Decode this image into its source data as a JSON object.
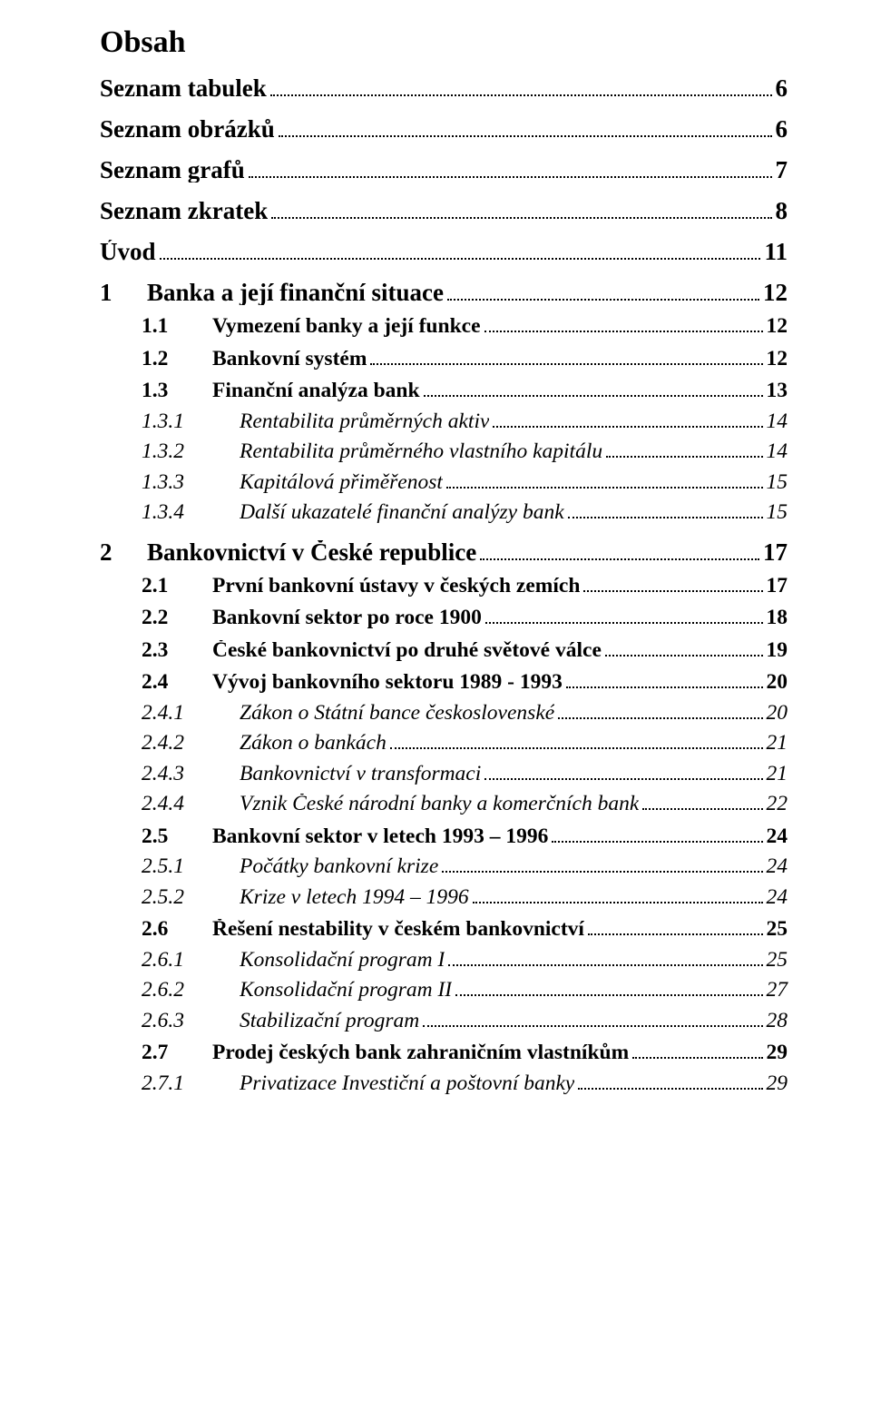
{
  "colors": {
    "text": "#000000",
    "background": "#ffffff",
    "dots": "#000000"
  },
  "typography": {
    "family": "Times New Roman",
    "heading_pt": 26,
    "lvl0_pt": 20,
    "lvl1_pt": 18,
    "lvl2_pt": 18
  },
  "heading": "Obsah",
  "entries": [
    {
      "level": 0,
      "num": "",
      "label": "Seznam tabulek",
      "page": "6"
    },
    {
      "level": 0,
      "num": "",
      "label": "Seznam obrázků",
      "page": "6"
    },
    {
      "level": 0,
      "num": "",
      "label": "Seznam grafů",
      "page": "7"
    },
    {
      "level": 0,
      "num": "",
      "label": "Seznam zkratek",
      "page": "8"
    },
    {
      "level": 0,
      "num": "",
      "label": "Úvod",
      "page": "11"
    },
    {
      "level": 0,
      "num": "1",
      "label": "Banka a její finanční situace",
      "page": "12"
    },
    {
      "level": 1,
      "num": "1.1",
      "label": "Vymezení banky a její funkce",
      "page": "12"
    },
    {
      "level": 1,
      "num": "1.2",
      "label": "Bankovní systém",
      "page": "12"
    },
    {
      "level": 1,
      "num": "1.3",
      "label": "Finanční analýza bank",
      "page": "13"
    },
    {
      "level": 2,
      "num": "1.3.1",
      "label": "Rentabilita průměrných aktiv",
      "page": "14"
    },
    {
      "level": 2,
      "num": "1.3.2",
      "label": "Rentabilita průměrného vlastního kapitálu",
      "page": "14"
    },
    {
      "level": 2,
      "num": "1.3.3",
      "label": "Kapitálová přiměřenost",
      "page": "15"
    },
    {
      "level": 2,
      "num": "1.3.4",
      "label": "Další ukazatelé finanční analýzy bank",
      "page": "15"
    },
    {
      "level": 0,
      "num": "2",
      "label": "Bankovnictví v České republice",
      "page": "17"
    },
    {
      "level": 1,
      "num": "2.1",
      "label": "První bankovní ústavy v českých zemích",
      "page": "17"
    },
    {
      "level": 1,
      "num": "2.2",
      "label": "Bankovní sektor po roce 1900",
      "page": "18"
    },
    {
      "level": 1,
      "num": "2.3",
      "label": "České bankovnictví po druhé světové válce",
      "page": "19"
    },
    {
      "level": 1,
      "num": "2.4",
      "label": "Vývoj bankovního sektoru 1989 - 1993",
      "page": "20"
    },
    {
      "level": 2,
      "num": "2.4.1",
      "label": "Zákon o Státní bance československé",
      "page": "20"
    },
    {
      "level": 2,
      "num": "2.4.2",
      "label": "Zákon o bankách",
      "page": "21"
    },
    {
      "level": 2,
      "num": "2.4.3",
      "label": "Bankovnictví v transformaci",
      "page": "21"
    },
    {
      "level": 2,
      "num": "2.4.4",
      "label": "Vznik České národní banky a komerčních bank",
      "page": "22"
    },
    {
      "level": 1,
      "num": "2.5",
      "label": "Bankovní sektor v letech 1993 – 1996",
      "page": "24"
    },
    {
      "level": 2,
      "num": "2.5.1",
      "label": "Počátky bankovní krize",
      "page": "24"
    },
    {
      "level": 2,
      "num": "2.5.2",
      "label": "Krize v letech 1994 – 1996",
      "page": "24"
    },
    {
      "level": 1,
      "num": "2.6",
      "label": "Řešení nestability v českém bankovnictví",
      "page": "25"
    },
    {
      "level": 2,
      "num": "2.6.1",
      "label": "Konsolidační program I",
      "page": "25"
    },
    {
      "level": 2,
      "num": "2.6.2",
      "label": "Konsolidační program II",
      "page": "27"
    },
    {
      "level": 2,
      "num": "2.6.3",
      "label": "Stabilizační program",
      "page": "28"
    },
    {
      "level": 1,
      "num": "2.7",
      "label": "Prodej českých bank zahraničním vlastníkům",
      "page": "29"
    },
    {
      "level": 2,
      "num": "2.7.1",
      "label": "Privatizace Investiční a poštovní banky",
      "page": "29"
    }
  ]
}
